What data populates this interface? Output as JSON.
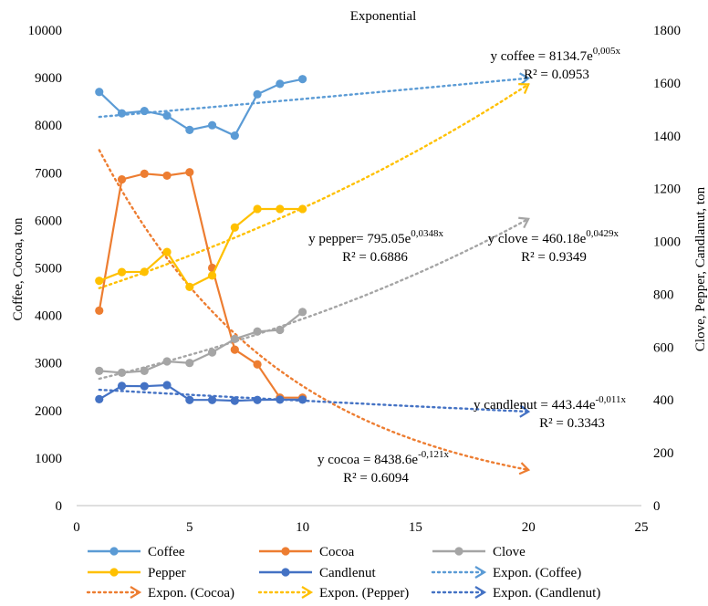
{
  "chart_data": {
    "type": "line",
    "title": "Exponential",
    "x": [
      1,
      2,
      3,
      4,
      5,
      6,
      7,
      8,
      9,
      10
    ],
    "xlim": [
      0,
      25
    ],
    "xticks": [
      0,
      5,
      10,
      15,
      20,
      25
    ],
    "ylabel_left": "Coffee, Cocoa, ton",
    "ylim_left": [
      0,
      10000
    ],
    "yticks_left": [
      0,
      1000,
      2000,
      3000,
      4000,
      5000,
      6000,
      7000,
      8000,
      9000,
      10000
    ],
    "ylabel_right": "Clove, Pepper, Candlanut, ton",
    "ylim_right": [
      0,
      1800
    ],
    "yticks_right": [
      0,
      200,
      400,
      600,
      800,
      1000,
      1200,
      1400,
      1600,
      1800
    ],
    "grid": false,
    "legend_position": "bottom",
    "series": [
      {
        "name": "Coffee",
        "axis": "left",
        "color": "#5b9bd5",
        "values": [
          8700,
          8250,
          8300,
          8200,
          7900,
          8000,
          7780,
          8650,
          8870,
          8970
        ]
      },
      {
        "name": "Cocoa",
        "axis": "left",
        "color": "#ed7d31",
        "values": [
          4100,
          6860,
          6980,
          6940,
          7010,
          5000,
          3280,
          2970,
          2270,
          2270
        ]
      },
      {
        "name": "Clove",
        "axis": "right",
        "color": "#a5a5a5",
        "values": [
          510,
          503,
          510,
          546,
          540,
          580,
          631,
          659,
          665,
          733
        ]
      },
      {
        "name": "Pepper",
        "axis": "right",
        "color": "#ffc000",
        "values": [
          851,
          884,
          885,
          960,
          828,
          871,
          1053,
          1123,
          1123,
          1123
        ]
      },
      {
        "name": "Candlenut",
        "axis": "right",
        "color": "#4472c4",
        "values": [
          403,
          453,
          452,
          456,
          400,
          400,
          397,
          400,
          401,
          401
        ]
      }
    ],
    "trendlines": [
      {
        "name": "Expon. (Coffee)",
        "of": "Coffee",
        "axis": "left",
        "color": "#5b9bd5",
        "a": 8134.7,
        "b": 0.005,
        "x_range": [
          1,
          20
        ],
        "equation": "y coffee = 8134.7e",
        "exponent": "0,005x",
        "r2": "R² = 0.0953"
      },
      {
        "name": "Expon. (Cocoa)",
        "of": "Cocoa",
        "axis": "left",
        "color": "#ed7d31",
        "a": 8438.6,
        "b": -0.121,
        "x_range": [
          1,
          20
        ],
        "equation": "y cocoa = 8438.6e",
        "exponent": "-0,121x",
        "r2": "R² = 0.6094"
      },
      {
        "name": "Expon. (Clove)",
        "of": "Clove",
        "axis": "right",
        "color": "#a5a5a5",
        "a": 460.18,
        "b": 0.0429,
        "x_range": [
          1,
          20
        ],
        "equation": "y clove = 460.18e",
        "exponent": "0,0429x",
        "r2": "R² = 0.9349"
      },
      {
        "name": "Expon. (Pepper)",
        "of": "Pepper",
        "axis": "right",
        "color": "#ffc000",
        "a": 795.05,
        "b": 0.0348,
        "x_range": [
          1,
          20
        ],
        "equation": "y  pepper= 795.05e",
        "exponent": "0,0348x",
        "r2": "R² = 0.6886"
      },
      {
        "name": "Expon. (Candlenut)",
        "of": "Candlenut",
        "axis": "right",
        "color": "#4472c4",
        "a": 443.44,
        "b": -0.011,
        "x_range": [
          1,
          20
        ],
        "equation": "y candlenut = 443.44e",
        "exponent": "-0,011x",
        "r2": "R² = 0.3343"
      }
    ]
  }
}
